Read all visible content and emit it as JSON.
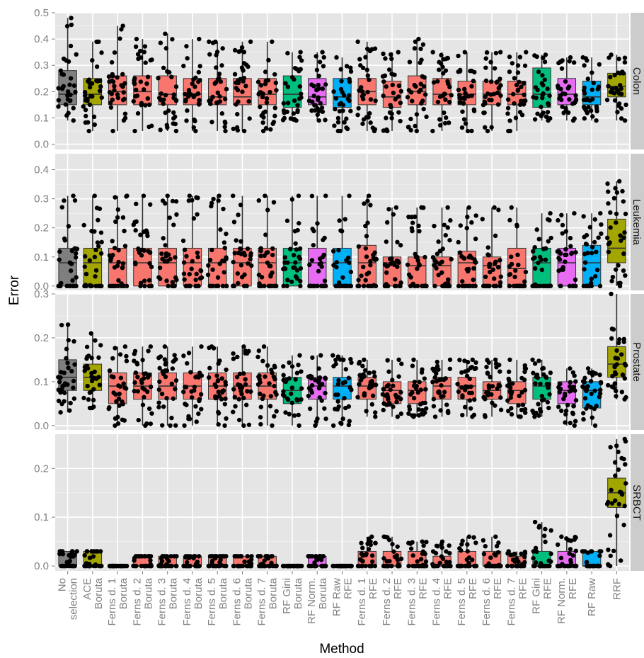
{
  "chart_data": {
    "type": "boxplot",
    "xlabel": "Method",
    "ylabel": "Error",
    "grid": true,
    "legend": "none",
    "categories": [
      {
        "key": "noselection",
        "label": [
          "No",
          "selection"
        ],
        "color": "#7f7f7f"
      },
      {
        "key": "aceboruta",
        "label": [
          "ACE",
          "Boruta"
        ],
        "color": "#a3a500"
      },
      {
        "key": "ferns1b",
        "label": [
          "Ferns d. 1",
          "Boruta"
        ],
        "color": "#f8766d"
      },
      {
        "key": "ferns2b",
        "label": [
          "Ferns d. 2",
          "Boruta"
        ],
        "color": "#f8766d"
      },
      {
        "key": "ferns3b",
        "label": [
          "Ferns d. 3",
          "Boruta"
        ],
        "color": "#f8766d"
      },
      {
        "key": "ferns4b",
        "label": [
          "Ferns d. 4",
          "Boruta"
        ],
        "color": "#f8766d"
      },
      {
        "key": "ferns5b",
        "label": [
          "Ferns d. 5",
          "Boruta"
        ],
        "color": "#f8766d"
      },
      {
        "key": "ferns6b",
        "label": [
          "Ferns d. 6",
          "Boruta"
        ],
        "color": "#f8766d"
      },
      {
        "key": "ferns7b",
        "label": [
          "Ferns d. 7",
          "Boruta"
        ],
        "color": "#f8766d"
      },
      {
        "key": "rfginib",
        "label": [
          "RF Gini",
          "Boruta"
        ],
        "color": "#00bf7d"
      },
      {
        "key": "rfnormb",
        "label": [
          "RF Norm.",
          "Boruta"
        ],
        "color": "#e76bf3"
      },
      {
        "key": "rfrawb",
        "label": [
          "RF Raw",
          "RFE"
        ],
        "color": "#00b0f6"
      },
      {
        "key": "ferns1r",
        "label": [
          "Ferns d. 1",
          "RFE"
        ],
        "color": "#f8766d"
      },
      {
        "key": "ferns2r",
        "label": [
          "Ferns d. 2",
          "RFE"
        ],
        "color": "#f8766d"
      },
      {
        "key": "ferns3r",
        "label": [
          "Ferns d. 3",
          "RFE"
        ],
        "color": "#f8766d"
      },
      {
        "key": "ferns4r",
        "label": [
          "Ferns d. 4",
          "RFE"
        ],
        "color": "#f8766d"
      },
      {
        "key": "ferns5r",
        "label": [
          "Ferns d. 5",
          "RFE"
        ],
        "color": "#f8766d"
      },
      {
        "key": "ferns6r",
        "label": [
          "Ferns d. 6",
          "RFE"
        ],
        "color": "#f8766d"
      },
      {
        "key": "ferns7r",
        "label": [
          "Ferns d. 7",
          "RFE"
        ],
        "color": "#f8766d"
      },
      {
        "key": "rfginir",
        "label": [
          "RF Gini",
          "RFE"
        ],
        "color": "#00bf7d"
      },
      {
        "key": "rfnormr",
        "label": [
          "RF Norm.",
          "RFE"
        ],
        "color": "#e76bf3"
      },
      {
        "key": "rfrawr",
        "label": [
          "RF Raw",
          ""
        ],
        "color": "#00b0f6"
      },
      {
        "key": "rrf",
        "label": [
          "RRF",
          ""
        ],
        "color": "#a3a500"
      }
    ],
    "panels": [
      {
        "name": "Colon",
        "ylim": [
          -0.02,
          0.5
        ],
        "yticks": [
          0.0,
          0.1,
          0.2,
          0.3,
          0.4,
          0.5
        ],
        "yticklabels": [
          "0.0",
          "0.1",
          "0.2",
          "0.3",
          "0.4",
          "0.5"
        ],
        "boxes": [
          [
            0.09,
            0.15,
            0.19,
            0.28,
            0.48
          ],
          [
            0.05,
            0.15,
            0.19,
            0.25,
            0.39
          ],
          [
            0.05,
            0.15,
            0.2,
            0.26,
            0.45
          ],
          [
            0.05,
            0.15,
            0.2,
            0.26,
            0.4
          ],
          [
            0.05,
            0.15,
            0.19,
            0.26,
            0.42
          ],
          [
            0.05,
            0.15,
            0.19,
            0.25,
            0.4
          ],
          [
            0.05,
            0.15,
            0.18,
            0.25,
            0.39
          ],
          [
            0.05,
            0.15,
            0.18,
            0.25,
            0.39
          ],
          [
            0.05,
            0.15,
            0.19,
            0.25,
            0.39
          ],
          [
            0.09,
            0.14,
            0.19,
            0.26,
            0.35
          ],
          [
            0.09,
            0.15,
            0.18,
            0.25,
            0.35
          ],
          [
            0.05,
            0.14,
            0.18,
            0.25,
            0.33
          ],
          [
            0.05,
            0.15,
            0.2,
            0.25,
            0.39
          ],
          [
            0.05,
            0.14,
            0.18,
            0.24,
            0.35
          ],
          [
            0.05,
            0.15,
            0.2,
            0.26,
            0.4
          ],
          [
            0.05,
            0.15,
            0.19,
            0.25,
            0.35
          ],
          [
            0.05,
            0.15,
            0.19,
            0.24,
            0.35
          ],
          [
            0.05,
            0.15,
            0.19,
            0.24,
            0.35
          ],
          [
            0.05,
            0.15,
            0.19,
            0.24,
            0.35
          ],
          [
            0.09,
            0.14,
            0.19,
            0.29,
            0.34
          ],
          [
            0.09,
            0.15,
            0.19,
            0.25,
            0.33
          ],
          [
            0.09,
            0.15,
            0.18,
            0.24,
            0.33
          ],
          [
            0.09,
            0.18,
            0.22,
            0.27,
            0.34
          ]
        ]
      },
      {
        "name": "Leukemia",
        "ylim": [
          -0.015,
          0.455
        ],
        "yticks": [
          0.0,
          0.1,
          0.2,
          0.3,
          0.4
        ],
        "yticklabels": [
          "0.0",
          "0.1",
          "0.2",
          "0.3",
          "0.4"
        ],
        "boxes": [
          [
            0.0,
            0.0,
            0.08,
            0.13,
            0.31
          ],
          [
            0.0,
            0.0,
            0.08,
            0.13,
            0.31
          ],
          [
            0.0,
            0.0,
            0.08,
            0.13,
            0.31
          ],
          [
            0.0,
            0.0,
            0.08,
            0.13,
            0.31
          ],
          [
            0.0,
            0.0,
            0.08,
            0.13,
            0.31
          ],
          [
            0.0,
            0.0,
            0.08,
            0.13,
            0.31
          ],
          [
            0.0,
            0.0,
            0.08,
            0.13,
            0.31
          ],
          [
            0.0,
            0.0,
            0.08,
            0.13,
            0.31
          ],
          [
            0.0,
            0.0,
            0.08,
            0.13,
            0.31
          ],
          [
            0.0,
            0.0,
            0.08,
            0.13,
            0.31
          ],
          [
            0.0,
            0.0,
            0.08,
            0.13,
            0.31
          ],
          [
            0.0,
            0.0,
            0.08,
            0.13,
            0.31
          ],
          [
            0.0,
            0.0,
            0.08,
            0.14,
            0.31
          ],
          [
            0.0,
            0.0,
            0.08,
            0.1,
            0.27
          ],
          [
            0.0,
            0.0,
            0.07,
            0.1,
            0.27
          ],
          [
            0.0,
            0.0,
            0.07,
            0.1,
            0.27
          ],
          [
            0.0,
            0.0,
            0.08,
            0.12,
            0.27
          ],
          [
            0.0,
            0.0,
            0.07,
            0.1,
            0.27
          ],
          [
            0.0,
            0.0,
            0.06,
            0.13,
            0.27
          ],
          [
            0.0,
            0.0,
            0.08,
            0.13,
            0.25
          ],
          [
            0.0,
            0.0,
            0.08,
            0.13,
            0.25
          ],
          [
            0.0,
            0.0,
            0.08,
            0.14,
            0.25
          ],
          [
            0.0,
            0.08,
            0.13,
            0.23,
            0.36
          ]
        ]
      },
      {
        "name": "Prostate",
        "ylim": [
          -0.01,
          0.3
        ],
        "yticks": [
          0.0,
          0.1,
          0.2,
          0.3
        ],
        "yticklabels": [
          "0.0",
          "0.1",
          "0.2",
          "0.3"
        ],
        "boxes": [
          [
            0.03,
            0.08,
            0.11,
            0.15,
            0.23
          ],
          [
            0.04,
            0.08,
            0.11,
            0.14,
            0.21
          ],
          [
            0.0,
            0.05,
            0.09,
            0.12,
            0.18
          ],
          [
            0.0,
            0.06,
            0.09,
            0.12,
            0.18
          ],
          [
            0.0,
            0.06,
            0.09,
            0.12,
            0.18
          ],
          [
            0.0,
            0.06,
            0.09,
            0.12,
            0.18
          ],
          [
            0.0,
            0.06,
            0.09,
            0.12,
            0.18
          ],
          [
            0.0,
            0.06,
            0.09,
            0.12,
            0.18
          ],
          [
            0.0,
            0.06,
            0.09,
            0.12,
            0.18
          ],
          [
            0.0,
            0.05,
            0.08,
            0.11,
            0.16
          ],
          [
            0.0,
            0.06,
            0.09,
            0.11,
            0.16
          ],
          [
            0.0,
            0.06,
            0.09,
            0.11,
            0.16
          ],
          [
            0.02,
            0.06,
            0.09,
            0.11,
            0.15
          ],
          [
            0.02,
            0.05,
            0.08,
            0.1,
            0.15
          ],
          [
            0.02,
            0.05,
            0.08,
            0.1,
            0.15
          ],
          [
            0.02,
            0.06,
            0.09,
            0.11,
            0.15
          ],
          [
            0.02,
            0.06,
            0.09,
            0.11,
            0.15
          ],
          [
            0.02,
            0.06,
            0.08,
            0.1,
            0.15
          ],
          [
            0.02,
            0.05,
            0.08,
            0.1,
            0.15
          ],
          [
            0.02,
            0.06,
            0.09,
            0.11,
            0.15
          ],
          [
            0.0,
            0.05,
            0.08,
            0.1,
            0.13
          ],
          [
            0.0,
            0.04,
            0.08,
            0.1,
            0.13
          ],
          [
            0.06,
            0.11,
            0.14,
            0.18,
            0.3
          ]
        ]
      },
      {
        "name": "SRBCT",
        "ylim": [
          -0.01,
          0.27
        ],
        "yticks": [
          0.0,
          0.1,
          0.2
        ],
        "yticklabels": [
          "0.0",
          "0.1",
          "0.2"
        ],
        "boxes": [
          [
            0.0,
            0.0,
            0.0,
            0.03,
            0.03
          ],
          [
            0.0,
            0.0,
            0.0,
            0.03,
            0.03
          ],
          [
            0.0,
            0.0,
            0.0,
            0.0,
            0.0
          ],
          [
            0.0,
            0.0,
            0.0,
            0.02,
            0.02
          ],
          [
            0.0,
            0.0,
            0.0,
            0.02,
            0.02
          ],
          [
            0.0,
            0.0,
            0.0,
            0.02,
            0.02
          ],
          [
            0.0,
            0.0,
            0.0,
            0.02,
            0.02
          ],
          [
            0.0,
            0.0,
            0.0,
            0.02,
            0.02
          ],
          [
            0.0,
            0.0,
            0.0,
            0.02,
            0.02
          ],
          [
            0.0,
            0.0,
            0.0,
            0.0,
            0.0
          ],
          [
            0.0,
            0.0,
            0.0,
            0.02,
            0.02
          ],
          [
            0.0,
            0.0,
            0.0,
            0.0,
            0.0
          ],
          [
            0.0,
            0.0,
            0.0,
            0.03,
            0.06
          ],
          [
            0.0,
            0.0,
            0.0,
            0.03,
            0.06
          ],
          [
            0.0,
            0.0,
            0.0,
            0.03,
            0.05
          ],
          [
            0.0,
            0.0,
            0.0,
            0.02,
            0.05
          ],
          [
            0.0,
            0.0,
            0.0,
            0.03,
            0.06
          ],
          [
            0.0,
            0.0,
            0.0,
            0.03,
            0.06
          ],
          [
            0.0,
            0.0,
            0.0,
            0.02,
            0.03
          ],
          [
            0.0,
            0.0,
            0.0,
            0.03,
            0.09
          ],
          [
            0.0,
            0.0,
            0.0,
            0.03,
            0.06
          ],
          [
            0.0,
            0.0,
            0.0,
            0.03,
            0.03
          ],
          [
            0.0,
            0.12,
            0.15,
            0.18,
            0.26
          ]
        ]
      }
    ]
  }
}
